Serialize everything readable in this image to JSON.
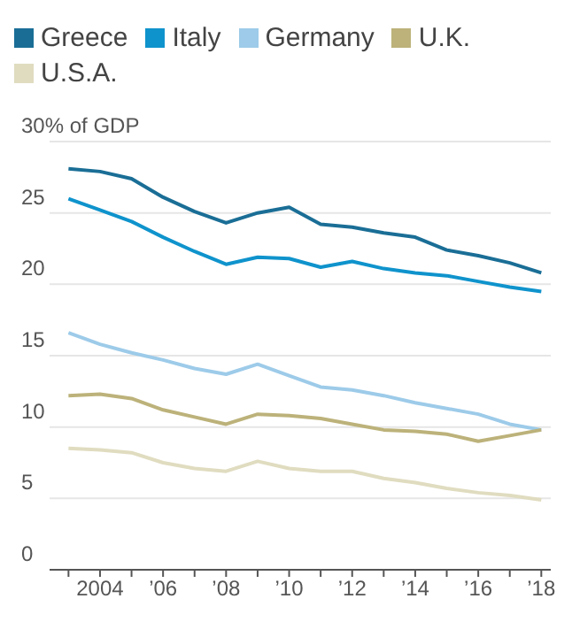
{
  "chart_data": {
    "type": "line",
    "x": [
      2003,
      2004,
      2005,
      2006,
      2007,
      2008,
      2009,
      2010,
      2011,
      2012,
      2013,
      2014,
      2015,
      2016,
      2017,
      2018
    ],
    "series": [
      {
        "name": "Greece",
        "color": "#1a6e96",
        "values": [
          28.1,
          27.9,
          27.4,
          26.1,
          25.1,
          24.3,
          25.0,
          25.4,
          24.2,
          24.0,
          23.6,
          23.3,
          22.4,
          22.0,
          21.5,
          20.8
        ]
      },
      {
        "name": "Italy",
        "color": "#0f93cc",
        "values": [
          26.0,
          25.2,
          24.4,
          23.3,
          22.3,
          21.4,
          21.9,
          21.8,
          21.2,
          21.6,
          21.1,
          20.8,
          20.6,
          20.2,
          19.8,
          19.5
        ]
      },
      {
        "name": "Germany",
        "color": "#9dcbe9",
        "values": [
          16.6,
          15.8,
          15.2,
          14.7,
          14.1,
          13.7,
          14.4,
          13.6,
          12.8,
          12.6,
          12.2,
          11.7,
          11.3,
          10.9,
          10.2,
          9.8
        ]
      },
      {
        "name": "U.K.",
        "color": "#bcb27a",
        "values": [
          12.2,
          12.3,
          12.0,
          11.2,
          10.7,
          10.2,
          10.9,
          10.8,
          10.6,
          10.2,
          9.8,
          9.7,
          9.5,
          9.0,
          9.4,
          9.8
        ]
      },
      {
        "name": "U.S.A.",
        "color": "#e0dcc0",
        "values": [
          8.5,
          8.4,
          8.2,
          7.5,
          7.1,
          6.9,
          7.6,
          7.1,
          6.9,
          6.9,
          6.4,
          6.1,
          5.7,
          5.4,
          5.2,
          4.9
        ]
      }
    ],
    "xlim": [
      2002.4,
      2018.3
    ],
    "xticks": [
      {
        "value": 2003,
        "label": null
      },
      2004,
      {
        "value": 2005,
        "label": null
      },
      {
        "value": 2006,
        "label": "’06"
      },
      {
        "value": 2007,
        "label": null
      },
      {
        "value": 2008,
        "label": "’08"
      },
      {
        "value": 2009,
        "label": null
      },
      {
        "value": 2010,
        "label": "’10"
      },
      {
        "value": 2011,
        "label": null
      },
      {
        "value": 2012,
        "label": "’12"
      },
      {
        "value": 2013,
        "label": null
      },
      {
        "value": 2014,
        "label": "’14"
      },
      {
        "value": 2015,
        "label": null
      },
      {
        "value": 2016,
        "label": "’16"
      },
      {
        "value": 2017,
        "label": null
      },
      {
        "value": 2018,
        "label": "’18"
      }
    ],
    "ylim": [
      0,
      30
    ],
    "yticks": [
      0,
      5,
      10,
      15,
      20,
      25,
      {
        "value": 30,
        "label": "30% of GDP"
      }
    ],
    "grid": "y",
    "legend": "top",
    "marker": "none",
    "line_style": "solid"
  }
}
